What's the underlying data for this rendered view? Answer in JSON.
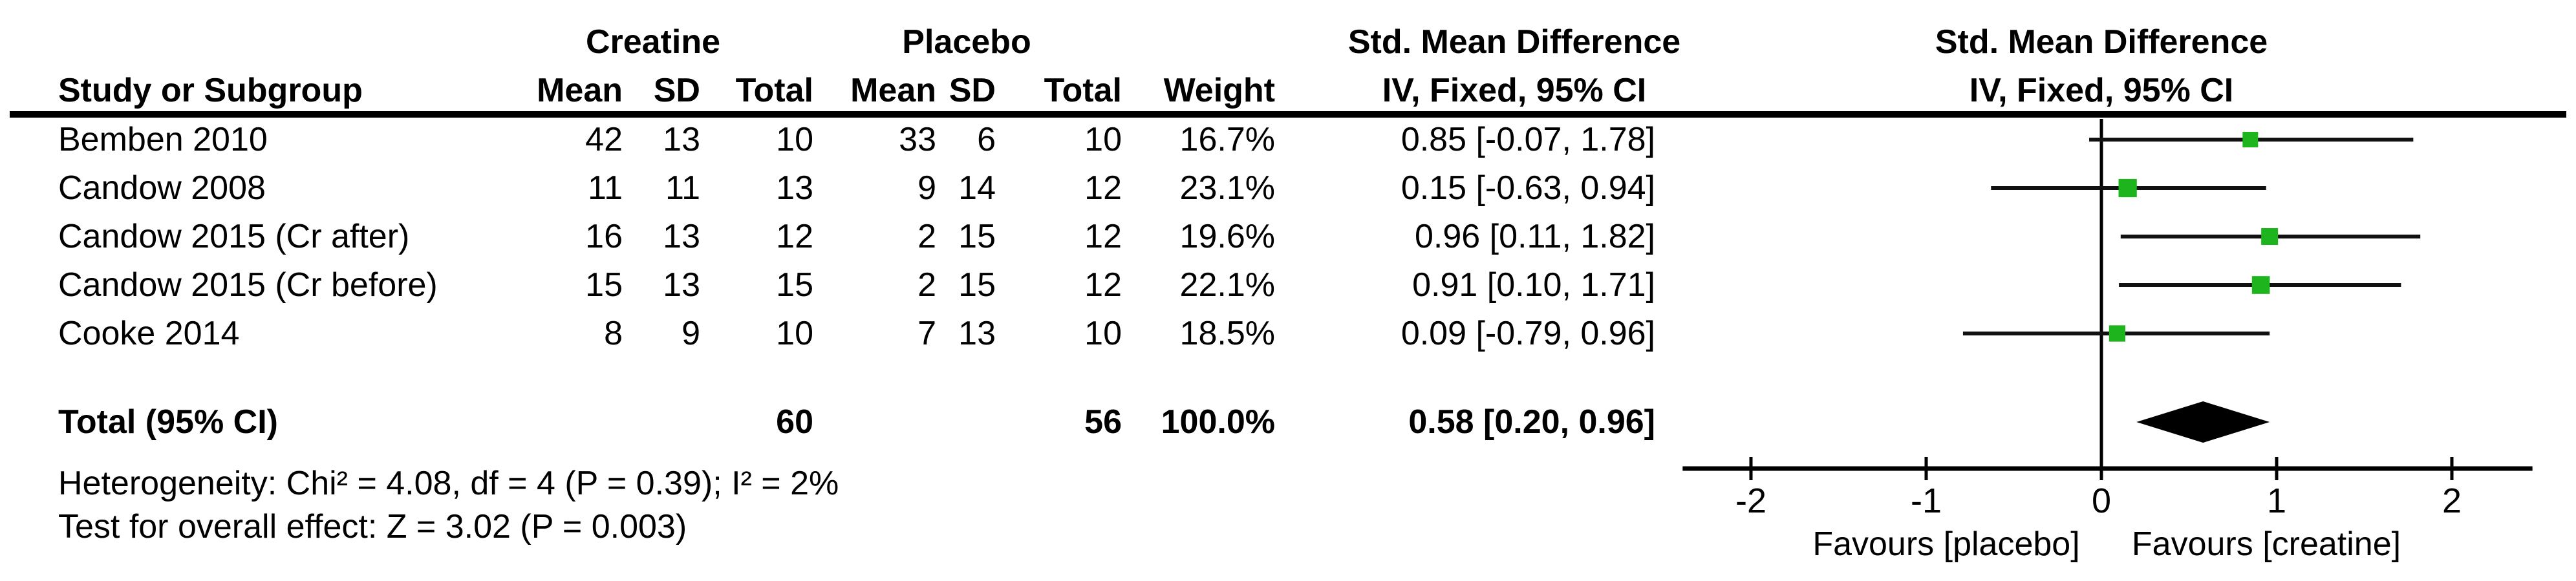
{
  "table": {
    "group_headers": {
      "creatine": "Creatine",
      "placebo": "Placebo",
      "smd_text_col": "Std. Mean Difference",
      "smd_plot_col": "Std. Mean Difference"
    },
    "column_headers": {
      "study": "Study or Subgroup",
      "mean1": "Mean",
      "sd1": "SD",
      "total1": "Total",
      "mean2": "Mean",
      "sd2": "SD",
      "total2": "Total",
      "weight": "Weight",
      "ci_text_col": "IV, Fixed, 95% CI",
      "ci_plot_col": "IV, Fixed, 95% CI"
    },
    "rows": [
      {
        "study": "Bemben 2010",
        "mean1": "42",
        "sd1": "13",
        "total1": "10",
        "mean2": "33",
        "sd2": "6",
        "total2": "10",
        "weight": "16.7%",
        "ci": "0.85 [-0.07, 1.78]"
      },
      {
        "study": "Candow 2008",
        "mean1": "11",
        "sd1": "11",
        "total1": "13",
        "mean2": "9",
        "sd2": "14",
        "total2": "12",
        "weight": "23.1%",
        "ci": "0.15 [-0.63, 0.94]"
      },
      {
        "study": "Candow 2015 (Cr after)",
        "mean1": "16",
        "sd1": "13",
        "total1": "12",
        "mean2": "2",
        "sd2": "15",
        "total2": "12",
        "weight": "19.6%",
        "ci": "0.96 [0.11, 1.82]"
      },
      {
        "study": "Candow 2015 (Cr before)",
        "mean1": "15",
        "sd1": "13",
        "total1": "15",
        "mean2": "2",
        "sd2": "15",
        "total2": "12",
        "weight": "22.1%",
        "ci": "0.91 [0.10, 1.71]"
      },
      {
        "study": "Cooke 2014",
        "mean1": "8",
        "sd1": "9",
        "total1": "10",
        "mean2": "7",
        "sd2": "13",
        "total2": "10",
        "weight": "18.5%",
        "ci": "0.09 [-0.79, 0.96]"
      }
    ],
    "total_row": {
      "label": "Total (95% CI)",
      "total1": "60",
      "total2": "56",
      "weight": "100.0%",
      "ci": "0.58 [0.20, 0.96]"
    },
    "footer": {
      "heterogeneity": "Heterogeneity: Chi² = 4.08, df = 4 (P = 0.39); I² = 2%",
      "overall_effect": "Test for overall effect: Z = 3.02 (P = 0.003)"
    }
  },
  "chart_data": {
    "type": "scatter",
    "subtype": "forest_plot",
    "title": "Std. Mean Difference",
    "effect_measure": "IV, Fixed, 95% CI",
    "studies": [
      {
        "name": "Bemben 2010",
        "smd": 0.85,
        "ci_low": -0.07,
        "ci_high": 1.78,
        "weight_pct": 16.7
      },
      {
        "name": "Candow 2008",
        "smd": 0.15,
        "ci_low": -0.63,
        "ci_high": 0.94,
        "weight_pct": 23.1
      },
      {
        "name": "Candow 2015 (Cr after)",
        "smd": 0.96,
        "ci_low": 0.11,
        "ci_high": 1.82,
        "weight_pct": 19.6
      },
      {
        "name": "Candow 2015 (Cr before)",
        "smd": 0.91,
        "ci_low": 0.1,
        "ci_high": 1.71,
        "weight_pct": 22.1
      },
      {
        "name": "Cooke 2014",
        "smd": 0.09,
        "ci_low": -0.79,
        "ci_high": 0.96,
        "weight_pct": 18.5
      }
    ],
    "total": {
      "name": "Total (95% CI)",
      "smd": 0.58,
      "ci_low": 0.2,
      "ci_high": 0.96,
      "weight_pct": 100.0
    },
    "x_ticks": [
      -2,
      -1,
      0,
      1,
      2
    ],
    "xlim": [
      -2.39,
      2.46
    ],
    "zero_line": 0,
    "x_axis_left_label": "Favours [placebo]",
    "x_axis_right_label": "Favours [creatine]",
    "legend": "none",
    "grid": false
  },
  "colors": {
    "background": "#ffffff",
    "text": "#000000",
    "marker_green": "#1eb41e",
    "ci_line": "#111111",
    "diamond": "#000000",
    "axis": "#000000"
  }
}
